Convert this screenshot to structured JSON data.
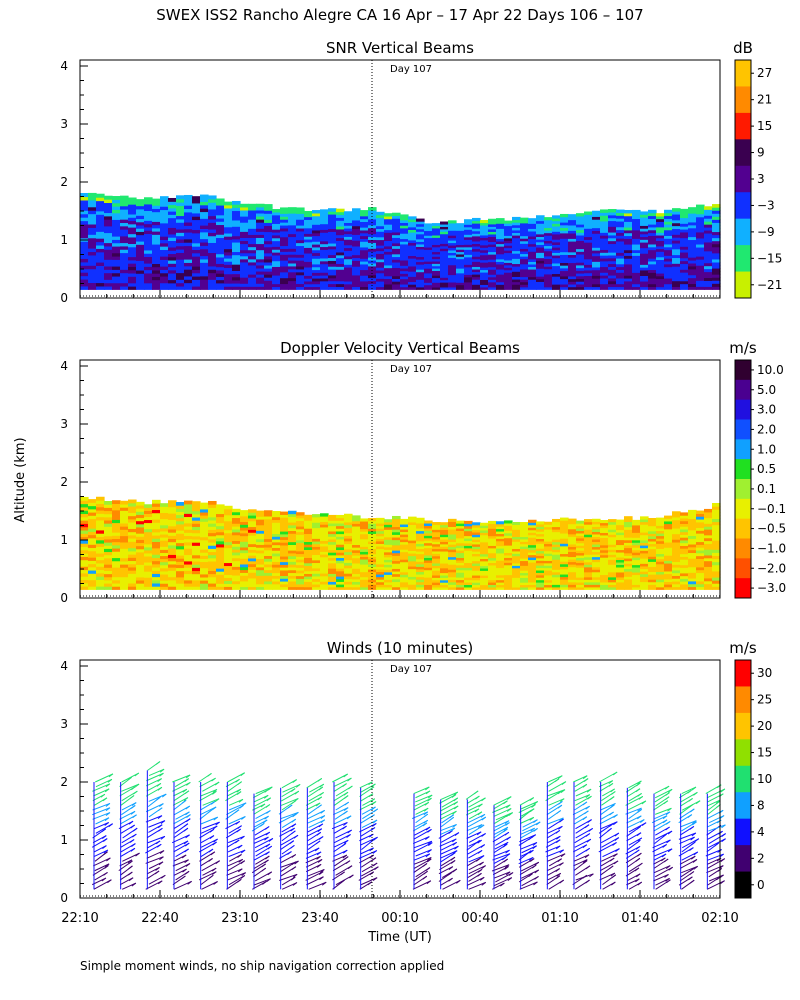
{
  "title": "SWEX ISS2 Rancho Alegre CA  16 Apr – 17 Apr 22 Days 106 – 107",
  "ylabel": "Altitude (km)",
  "xlabel": "Time (UT)",
  "footnote": "Simple moment winds, no ship navigation correction applied",
  "day_marker_label": "Day 107",
  "x_ticks": [
    "22:10",
    "22:40",
    "23:10",
    "23:40",
    "00:10",
    "00:40",
    "01:10",
    "01:40",
    "02:10"
  ],
  "chart_data": [
    {
      "type": "heatmap",
      "title": "SNR Vertical Beams",
      "colorbar_unit": "dB",
      "colorbar_labels": [
        "27",
        "21",
        "15",
        "9",
        "3",
        "−3",
        "−9",
        "−15",
        "−21"
      ],
      "colors": [
        "#ffc400",
        "#ff8a00",
        "#ff1a00",
        "#3a0050",
        "#520090",
        "#1030ff",
        "#10b0ff",
        "#20e870",
        "#c8f000"
      ],
      "ylim": [
        0,
        4
      ],
      "y_ticks": [
        "0",
        "1",
        "2",
        "3",
        "4"
      ],
      "x_range": [
        "22:10",
        "02:10"
      ],
      "day_marker_time": "00:00",
      "echo_top_km": [
        1.85,
        1.7,
        1.8,
        1.6,
        1.5,
        1.55,
        1.3,
        1.35,
        1.4,
        1.55,
        1.5,
        1.6
      ]
    },
    {
      "type": "heatmap",
      "title": "Doppler Velocity Vertical Beams",
      "colorbar_unit": "m/s",
      "colorbar_labels": [
        "10.0",
        "5.0",
        "3.0",
        "2.0",
        "1.0",
        "0.5",
        "0.1",
        "−0.1",
        "−0.5",
        "−1.0",
        "−2.0",
        "−3.0"
      ],
      "colors": [
        "#300030",
        "#4a0090",
        "#2010e0",
        "#1050ff",
        "#10a0ff",
        "#20e020",
        "#a0f030",
        "#e8f000",
        "#ffc400",
        "#ff8a00",
        "#ff5000",
        "#ff0000"
      ],
      "ylim": [
        0,
        4
      ],
      "y_ticks": [
        "0",
        "1",
        "2",
        "3",
        "4"
      ],
      "x_range": [
        "22:10",
        "02:10"
      ],
      "day_marker_time": "00:00",
      "echo_top_km": [
        1.75,
        1.65,
        1.7,
        1.5,
        1.45,
        1.4,
        1.35,
        1.3,
        1.35,
        1.35,
        1.4,
        1.6
      ]
    },
    {
      "type": "barbs",
      "title": "Winds (10 minutes)",
      "colorbar_unit": "m/s",
      "colorbar_labels": [
        "30",
        "25",
        "20",
        "15",
        "10",
        "8",
        "4",
        "2",
        "0"
      ],
      "colors": [
        "#ff0000",
        "#ff8a00",
        "#ffc400",
        "#90e000",
        "#20e070",
        "#10a0ff",
        "#1010ff",
        "#400070",
        "#000000"
      ],
      "ylim": [
        0,
        4
      ],
      "y_ticks": [
        "0",
        "1",
        "2",
        "3",
        "4"
      ],
      "x_range": [
        "22:10",
        "02:10"
      ],
      "day_marker_time": "00:00",
      "profile_times": [
        "22:10",
        "22:20",
        "22:30",
        "22:40",
        "22:50",
        "23:00",
        "23:10",
        "23:20",
        "23:30",
        "23:40",
        "23:50",
        "00:10",
        "00:20",
        "00:30",
        "00:40",
        "00:50",
        "01:00",
        "01:10",
        "01:20",
        "01:30",
        "01:40",
        "01:50",
        "02:00"
      ],
      "profile_top_km": [
        2.0,
        2.0,
        2.2,
        2.0,
        2.0,
        2.0,
        1.8,
        1.9,
        1.9,
        2.0,
        1.9,
        1.8,
        1.7,
        1.7,
        1.6,
        1.6,
        2.0,
        2.0,
        2.0,
        1.9,
        1.8,
        1.8,
        1.8
      ]
    }
  ]
}
